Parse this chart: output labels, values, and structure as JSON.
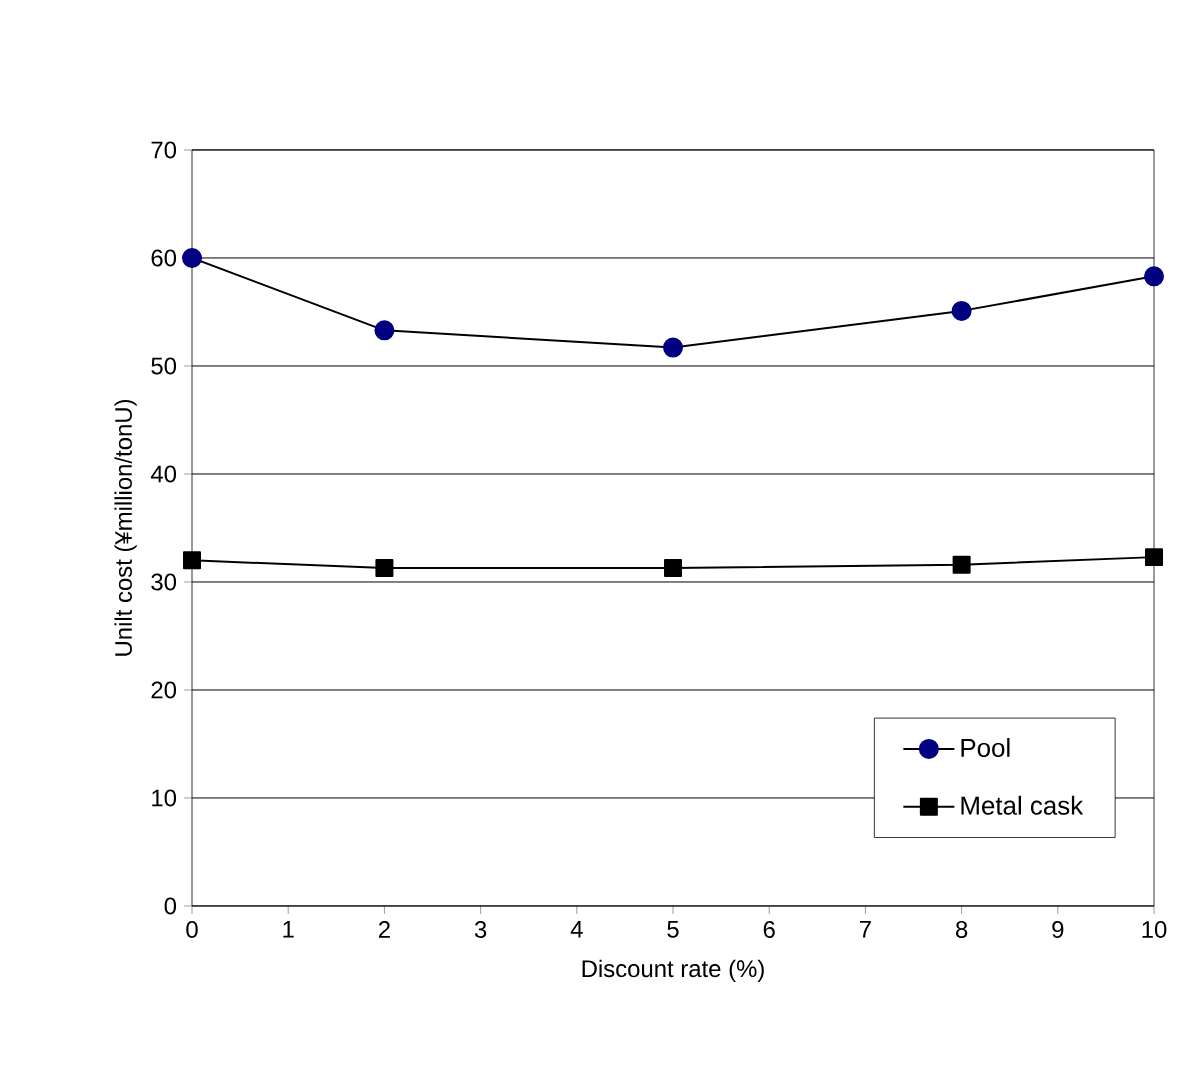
{
  "chart_data": {
    "type": "line",
    "xlabel": "Discount rate (%)",
    "ylabel": "Unilt cost (¥million/tonU)",
    "x": [
      0,
      2,
      5,
      8,
      10
    ],
    "series": [
      {
        "name": "Pool",
        "color": "#000080",
        "marker": "circle",
        "values": [
          60,
          53.3,
          51.7,
          55.1,
          58.3
        ]
      },
      {
        "name": "Metal cask",
        "color": "#000000",
        "marker": "square",
        "values": [
          32.0,
          31.3,
          31.3,
          31.6,
          32.3
        ]
      }
    ],
    "xlim": [
      0,
      10
    ],
    "xticks": [
      0,
      1,
      2,
      3,
      4,
      5,
      6,
      7,
      8,
      9,
      10
    ],
    "ylim": [
      0,
      70
    ],
    "yticks": [
      0,
      10,
      20,
      30,
      40,
      50,
      60,
      70
    ],
    "grid": "y",
    "legend": "bottom right",
    "line_style": "solid"
  }
}
